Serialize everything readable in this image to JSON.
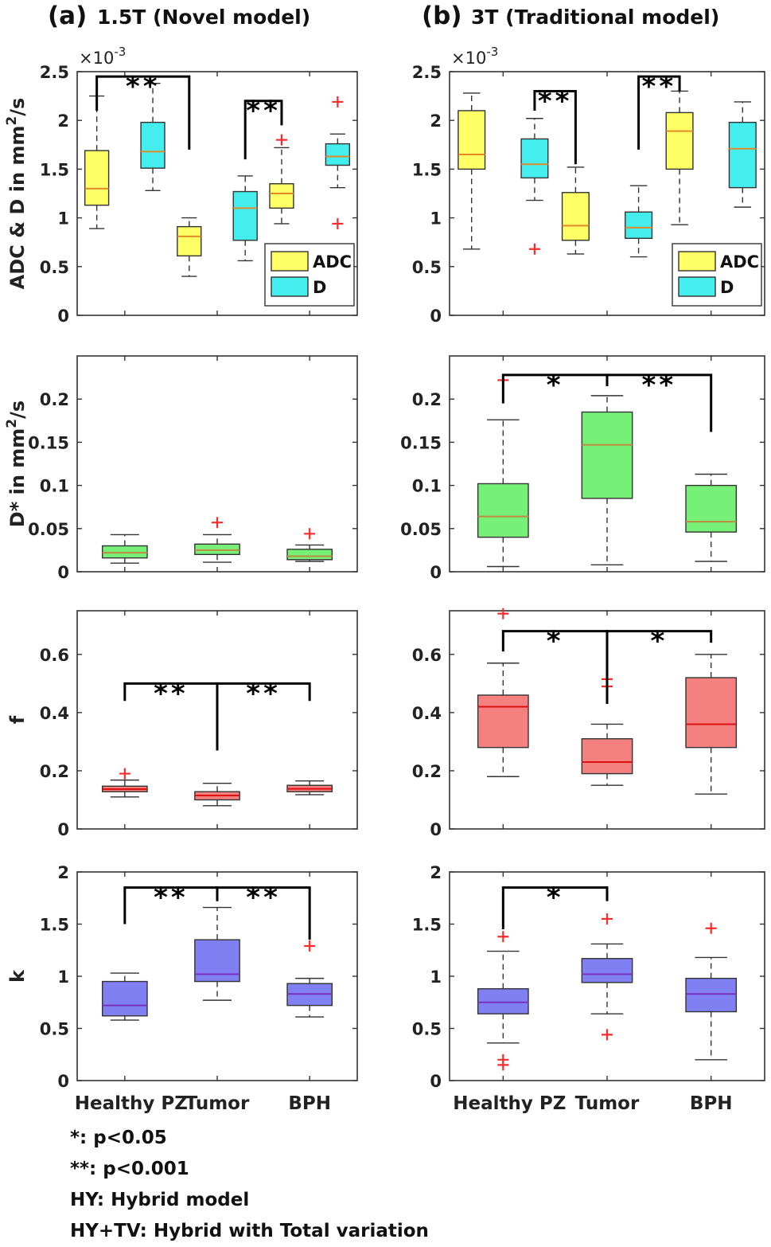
{
  "panels": [
    {
      "letter": "(a)",
      "title": "1.5T (Novel model)"
    },
    {
      "letter": "(b)",
      "title": "3T (Traditional model)"
    }
  ],
  "categories": [
    "Healthy PZ",
    "Tumor",
    "BPH"
  ],
  "legend_labels": [
    "ADC",
    "D"
  ],
  "notes": [
    "*: p<0.05",
    "**: p<0.001",
    "HY: Hybrid model",
    "HY+TV: Hybrid with Total variation"
  ],
  "colors": {
    "adc": "#ffff66",
    "d": "#44eeee",
    "dstar": "#77f077",
    "f": "#f48080",
    "k": "#8080f2",
    "outlier": "#ff2a2a",
    "median_adc_d": "#e08a2a",
    "median_dstar": "#c08a40",
    "median_f": "#dd1111",
    "median_k": "#7a30c0"
  },
  "chart_data": [
    {
      "type": "box",
      "panel": "(a)",
      "row": "ADC & D",
      "ylabel": "ADC & D in mm²/s",
      "ylabel_base": "ADC & D in mm",
      "ylabel_sup": "2",
      "ylabel_tail": "/s",
      "exponent_base": "×10",
      "exponent": "-3",
      "ylim": [
        0,
        2.5
      ],
      "yticks": [
        0,
        0.5,
        1,
        1.5,
        2,
        2.5
      ],
      "ytick_labels": [
        "0",
        "0.5",
        "1",
        "1.5",
        "2",
        "2.5"
      ],
      "categories": [
        "Healthy PZ",
        "Tumor",
        "BPH"
      ],
      "legend": [
        "ADC",
        "D"
      ],
      "legend_position": "bottom-right",
      "series": [
        {
          "name": "ADC",
          "boxes": [
            {
              "whislo": 0.89,
              "q1": 1.13,
              "med": 1.3,
              "q3": 1.69,
              "whishi": 2.25,
              "outliers": []
            },
            {
              "whislo": 0.4,
              "q1": 0.61,
              "med": 0.81,
              "q3": 0.91,
              "whishi": 1.0,
              "outliers": []
            },
            {
              "whislo": 0.94,
              "q1": 1.1,
              "med": 1.25,
              "q3": 1.35,
              "whishi": 1.72,
              "outliers": [
                1.8
              ]
            }
          ]
        },
        {
          "name": "D",
          "boxes": [
            {
              "whislo": 1.28,
              "q1": 1.51,
              "med": 1.68,
              "q3": 1.98,
              "whishi": 2.38,
              "outliers": []
            },
            {
              "whislo": 0.56,
              "q1": 0.77,
              "med": 1.1,
              "q3": 1.27,
              "whishi": 1.43,
              "outliers": []
            },
            {
              "whislo": 1.31,
              "q1": 1.54,
              "med": 1.63,
              "q3": 1.76,
              "whishi": 1.86,
              "outliers": [
                2.19,
                0.94
              ]
            }
          ]
        }
      ],
      "significance": [
        {
          "from": [
            0,
            0
          ],
          "to": [
            1,
            0
          ],
          "label": "**",
          "y": 2.45,
          "end_y": [
            2.1,
            1.7
          ]
        },
        {
          "from": [
            1,
            1
          ],
          "to": [
            2,
            0
          ],
          "label": "**",
          "y": 2.2,
          "end_y": [
            1.6,
            1.95
          ]
        }
      ]
    },
    {
      "type": "box",
      "panel": "(b)",
      "row": "ADC & D",
      "exponent_base": "×10",
      "exponent": "-3",
      "ylim": [
        0,
        2.5
      ],
      "yticks": [
        0,
        0.5,
        1,
        1.5,
        2,
        2.5
      ],
      "ytick_labels": [
        "0",
        "0.5",
        "1",
        "1.5",
        "2",
        "2.5"
      ],
      "categories": [
        "Healthy PZ",
        "Tumor",
        "BPH"
      ],
      "legend": [
        "ADC",
        "D"
      ],
      "legend_position": "bottom-right",
      "series": [
        {
          "name": "ADC",
          "boxes": [
            {
              "whislo": 0.68,
              "q1": 1.5,
              "med": 1.65,
              "q3": 2.1,
              "whishi": 2.28,
              "outliers": []
            },
            {
              "whislo": 0.63,
              "q1": 0.77,
              "med": 0.92,
              "q3": 1.26,
              "whishi": 1.52,
              "outliers": []
            },
            {
              "whislo": 0.93,
              "q1": 1.5,
              "med": 1.89,
              "q3": 2.08,
              "whishi": 2.3,
              "outliers": []
            }
          ]
        },
        {
          "name": "D",
          "boxes": [
            {
              "whislo": 1.18,
              "q1": 1.41,
              "med": 1.55,
              "q3": 1.81,
              "whishi": 2.02,
              "outliers": [
                0.68
              ]
            },
            {
              "whislo": 0.6,
              "q1": 0.79,
              "med": 0.9,
              "q3": 1.06,
              "whishi": 1.33,
              "outliers": []
            },
            {
              "whislo": 1.11,
              "q1": 1.31,
              "med": 1.71,
              "q3": 1.98,
              "whishi": 2.19,
              "outliers": []
            }
          ]
        }
      ],
      "significance": [
        {
          "from": [
            0,
            1
          ],
          "to": [
            1,
            0
          ],
          "label": "**",
          "y": 2.3,
          "end_y": [
            2.1,
            1.55
          ]
        },
        {
          "from": [
            1,
            1
          ],
          "to": [
            2,
            0
          ],
          "label": "**",
          "y": 2.45,
          "end_y": [
            1.7,
            2.3
          ]
        }
      ]
    },
    {
      "type": "box",
      "panel": "(a)",
      "row": "D*",
      "ylabel": "D* in mm²/s",
      "ylabel_base": "D* in mm",
      "ylabel_sup": "2",
      "ylabel_tail": "/s",
      "ylim": [
        0,
        0.25
      ],
      "yticks": [
        0,
        0.05,
        0.1,
        0.15,
        0.2
      ],
      "ytick_labels": [
        "0",
        "0.05",
        "0.1",
        "0.15",
        "0.2"
      ],
      "categories": [
        "Healthy PZ",
        "Tumor",
        "BPH"
      ],
      "series": [
        {
          "name": "D*",
          "boxes": [
            {
              "whislo": 0.01,
              "q1": 0.016,
              "med": 0.022,
              "q3": 0.03,
              "whishi": 0.043,
              "outliers": []
            },
            {
              "whislo": 0.011,
              "q1": 0.02,
              "med": 0.025,
              "q3": 0.032,
              "whishi": 0.043,
              "outliers": [
                0.057
              ]
            },
            {
              "whislo": 0.012,
              "q1": 0.014,
              "med": 0.018,
              "q3": 0.026,
              "whishi": 0.031,
              "outliers": [
                0.044
              ]
            }
          ]
        }
      ],
      "significance": []
    },
    {
      "type": "box",
      "panel": "(b)",
      "row": "D*",
      "ylim": [
        0,
        0.25
      ],
      "yticks": [
        0,
        0.05,
        0.1,
        0.15,
        0.2
      ],
      "ytick_labels": [
        "0",
        "0.05",
        "0.1",
        "0.15",
        "0.2"
      ],
      "categories": [
        "Healthy PZ",
        "Tumor",
        "BPH"
      ],
      "series": [
        {
          "name": "D*",
          "boxes": [
            {
              "whislo": 0.006,
              "q1": 0.04,
              "med": 0.064,
              "q3": 0.102,
              "whishi": 0.176,
              "outliers": [
                0.222
              ]
            },
            {
              "whislo": 0.008,
              "q1": 0.085,
              "med": 0.147,
              "q3": 0.185,
              "whishi": 0.204,
              "outliers": []
            },
            {
              "whislo": 0.012,
              "q1": 0.046,
              "med": 0.058,
              "q3": 0.1,
              "whishi": 0.113,
              "outliers": []
            }
          ]
        }
      ],
      "significance": [
        {
          "from": [
            0,
            0
          ],
          "to": [
            1,
            0
          ],
          "label": "*",
          "y": 0.228,
          "end_y": [
            0.195,
            0.22
          ]
        },
        {
          "from": [
            1,
            0
          ],
          "to": [
            2,
            0
          ],
          "label": "**",
          "y": 0.228,
          "end_y": [
            0.215,
            0.162
          ]
        }
      ]
    },
    {
      "type": "box",
      "panel": "(a)",
      "row": "f",
      "ylabel": "f",
      "ylim": [
        0,
        0.75
      ],
      "yticks": [
        0,
        0.2,
        0.4,
        0.6
      ],
      "ytick_labels": [
        "0",
        "0.2",
        "0.4",
        "0.6"
      ],
      "categories": [
        "Healthy PZ",
        "Tumor",
        "BPH"
      ],
      "series": [
        {
          "name": "f",
          "boxes": [
            {
              "whislo": 0.11,
              "q1": 0.128,
              "med": 0.137,
              "q3": 0.147,
              "whishi": 0.168,
              "outliers": [
                0.19
              ]
            },
            {
              "whislo": 0.08,
              "q1": 0.1,
              "med": 0.115,
              "q3": 0.128,
              "whishi": 0.157,
              "outliers": []
            },
            {
              "whislo": 0.118,
              "q1": 0.128,
              "med": 0.138,
              "q3": 0.15,
              "whishi": 0.165,
              "outliers": []
            }
          ]
        }
      ],
      "significance": [
        {
          "from": [
            0,
            0
          ],
          "to": [
            1,
            0
          ],
          "label": "**",
          "y": 0.5,
          "end_y": [
            0.44,
            0.27
          ]
        },
        {
          "from": [
            1,
            0
          ],
          "to": [
            2,
            0
          ],
          "label": "**",
          "y": 0.5,
          "end_y": [
            0.27,
            0.44
          ]
        }
      ]
    },
    {
      "type": "box",
      "panel": "(b)",
      "row": "f",
      "ylim": [
        0,
        0.75
      ],
      "yticks": [
        0,
        0.2,
        0.4,
        0.6
      ],
      "ytick_labels": [
        "0",
        "0.2",
        "0.4",
        "0.6"
      ],
      "categories": [
        "Healthy PZ",
        "Tumor",
        "BPH"
      ],
      "series": [
        {
          "name": "f",
          "boxes": [
            {
              "whislo": 0.18,
              "q1": 0.28,
              "med": 0.42,
              "q3": 0.46,
              "whishi": 0.57,
              "outliers": [
                0.74
              ]
            },
            {
              "whislo": 0.15,
              "q1": 0.19,
              "med": 0.23,
              "q3": 0.31,
              "whishi": 0.36,
              "outliers": [
                0.515,
                0.49
              ]
            },
            {
              "whislo": 0.12,
              "q1": 0.28,
              "med": 0.36,
              "q3": 0.52,
              "whishi": 0.6,
              "outliers": []
            }
          ]
        }
      ],
      "significance": [
        {
          "from": [
            0,
            0
          ],
          "to": [
            1,
            0
          ],
          "label": "*",
          "y": 0.68,
          "end_y": [
            0.61,
            0.43
          ]
        },
        {
          "from": [
            1,
            0
          ],
          "to": [
            2,
            0
          ],
          "label": "*",
          "y": 0.68,
          "end_y": [
            0.43,
            0.64
          ]
        }
      ]
    },
    {
      "type": "box",
      "panel": "(a)",
      "row": "k",
      "ylabel": "k",
      "ylim": [
        0,
        2
      ],
      "yticks": [
        0,
        0.5,
        1,
        1.5,
        2
      ],
      "ytick_labels": [
        "0",
        "0.5",
        "1",
        "1.5",
        "2"
      ],
      "categories": [
        "Healthy PZ",
        "Tumor",
        "BPH"
      ],
      "series": [
        {
          "name": "k",
          "boxes": [
            {
              "whislo": 0.58,
              "q1": 0.62,
              "med": 0.72,
              "q3": 0.95,
              "whishi": 1.03,
              "outliers": []
            },
            {
              "whislo": 0.77,
              "q1": 0.95,
              "med": 1.02,
              "q3": 1.35,
              "whishi": 1.66,
              "outliers": []
            },
            {
              "whislo": 0.61,
              "q1": 0.72,
              "med": 0.83,
              "q3": 0.93,
              "whishi": 0.98,
              "outliers": [
                1.29
              ]
            }
          ]
        }
      ],
      "significance": [
        {
          "from": [
            0,
            0
          ],
          "to": [
            1,
            0
          ],
          "label": "**",
          "y": 1.85,
          "end_y": [
            1.5,
            1.72
          ]
        },
        {
          "from": [
            1,
            0
          ],
          "to": [
            2,
            0
          ],
          "label": "**",
          "y": 1.85,
          "end_y": [
            1.72,
            1.35
          ]
        }
      ]
    },
    {
      "type": "box",
      "panel": "(b)",
      "row": "k",
      "ylim": [
        0,
        2
      ],
      "yticks": [
        0,
        0.5,
        1,
        1.5,
        2
      ],
      "ytick_labels": [
        "0",
        "0.5",
        "1",
        "1.5",
        "2"
      ],
      "categories": [
        "Healthy PZ",
        "Tumor",
        "BPH"
      ],
      "series": [
        {
          "name": "k",
          "boxes": [
            {
              "whislo": 0.36,
              "q1": 0.64,
              "med": 0.75,
              "q3": 0.88,
              "whishi": 1.24,
              "outliers": [
                1.38,
                0.2,
                0.15
              ]
            },
            {
              "whislo": 0.64,
              "q1": 0.94,
              "med": 1.02,
              "q3": 1.17,
              "whishi": 1.31,
              "outliers": [
                1.55,
                0.44
              ]
            },
            {
              "whislo": 0.2,
              "q1": 0.66,
              "med": 0.83,
              "q3": 0.98,
              "whishi": 1.18,
              "outliers": [
                1.46
              ]
            }
          ]
        }
      ],
      "significance": [
        {
          "from": [
            0,
            0
          ],
          "to": [
            1,
            0
          ],
          "label": "*",
          "y": 1.85,
          "end_y": [
            1.45,
            1.72
          ]
        }
      ]
    }
  ]
}
